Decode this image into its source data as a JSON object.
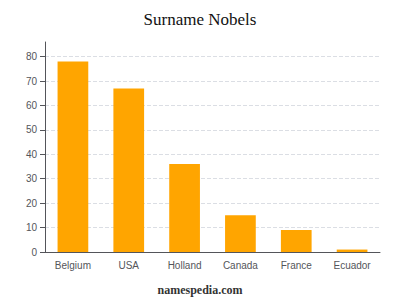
{
  "chart_data": {
    "type": "bar",
    "title": "Surname Nobels",
    "categories": [
      "Belgium",
      "USA",
      "Holland",
      "Canada",
      "France",
      "Ecuador"
    ],
    "values": [
      78,
      67,
      36,
      15,
      9,
      1
    ],
    "color": "#FFA500",
    "ylim": [
      0,
      86
    ],
    "yticks": [
      0,
      10,
      20,
      30,
      40,
      50,
      60,
      70,
      80
    ],
    "grid": true,
    "annotations": [
      "namespedia.com"
    ]
  }
}
